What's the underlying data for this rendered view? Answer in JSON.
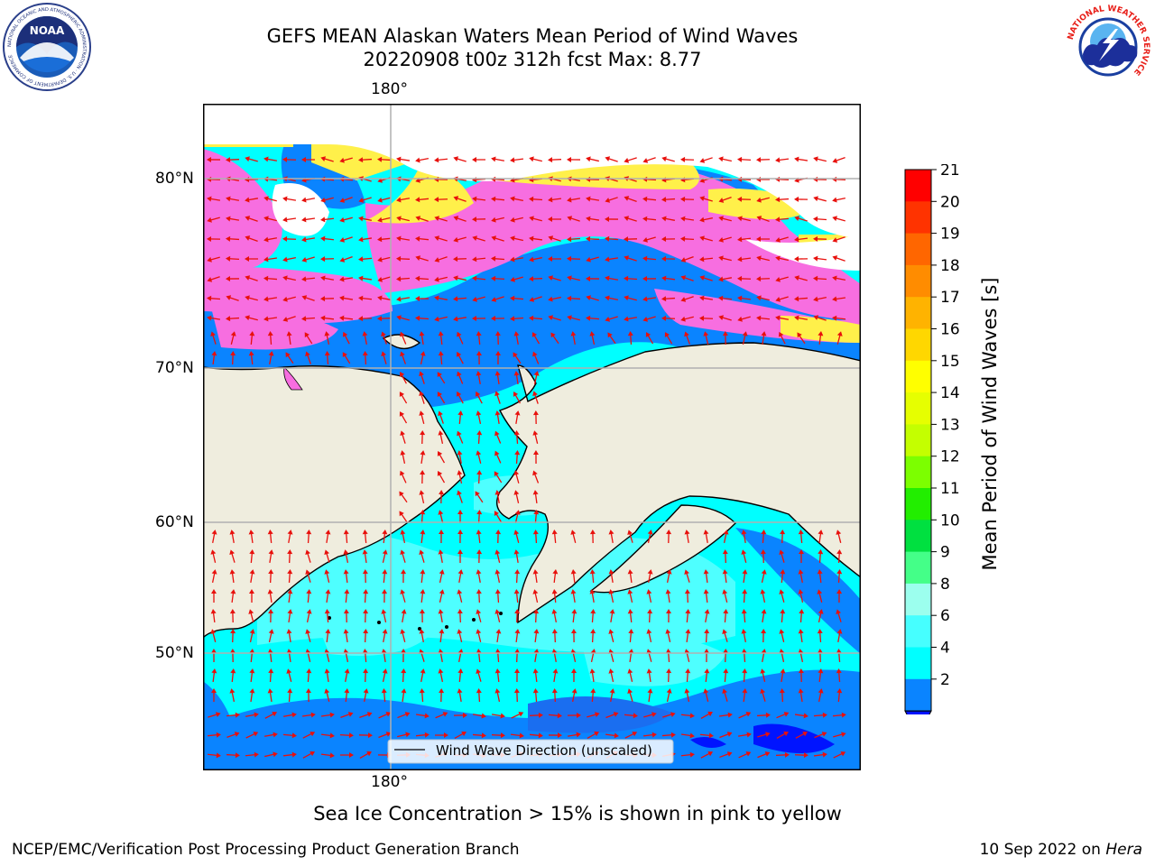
{
  "title": {
    "line1": "GEFS MEAN Alaskan Waters Mean Period of Wind Waves",
    "line2": "20220908 t00z 312h fcst   Max: 8.77"
  },
  "logos": {
    "left": {
      "icon": "noaa-logo-icon",
      "text": "NOAA",
      "ring_text": "NATIONAL OCEANIC AND ATMOSPHERIC ADMINISTRATION · U.S. DEPARTMENT OF COMMERCE"
    },
    "right": {
      "icon": "nws-logo-icon",
      "ring_text": "NATIONAL WEATHER SERVICE"
    }
  },
  "map": {
    "lon_label_top": "180°",
    "lon_label_bottom": "180°",
    "lat_labels": [
      "80°N",
      "70°N",
      "60°N",
      "50°N"
    ],
    "legend_label": "Wind Wave Direction (unscaled)",
    "colors": {
      "land": "#efedde",
      "ice_pink": "#f76ee0",
      "ice_yellow": "#fff04a",
      "arrow": "#e8100c",
      "grid": "#b0b0b0"
    }
  },
  "colorbar": {
    "title": "Mean Period of Wind Waves [s]",
    "ticks": [
      "21",
      "20",
      "19",
      "18",
      "17",
      "16",
      "15",
      "14",
      "13",
      "12",
      "11",
      "10",
      "9",
      "8",
      "6",
      "4",
      "2"
    ],
    "colors": [
      "#ff0000",
      "#ff3300",
      "#ff6600",
      "#ff8c00",
      "#ffb300",
      "#ffd700",
      "#ffff00",
      "#e6ff00",
      "#c4ff00",
      "#7cff00",
      "#22ee00",
      "#00e040",
      "#44ff88",
      "#9cffee",
      "#46ffff",
      "#00ffff",
      "#0a84ff"
    ],
    "under_color": "#0014ff"
  },
  "ice_note": "Sea Ice Concentration > 15% is shown in pink to yellow",
  "footer": {
    "left": "NCEP/EMC/Verification Post Processing Product Generation Branch",
    "date": "10 Sep 2022 on ",
    "machine": "Hera"
  }
}
